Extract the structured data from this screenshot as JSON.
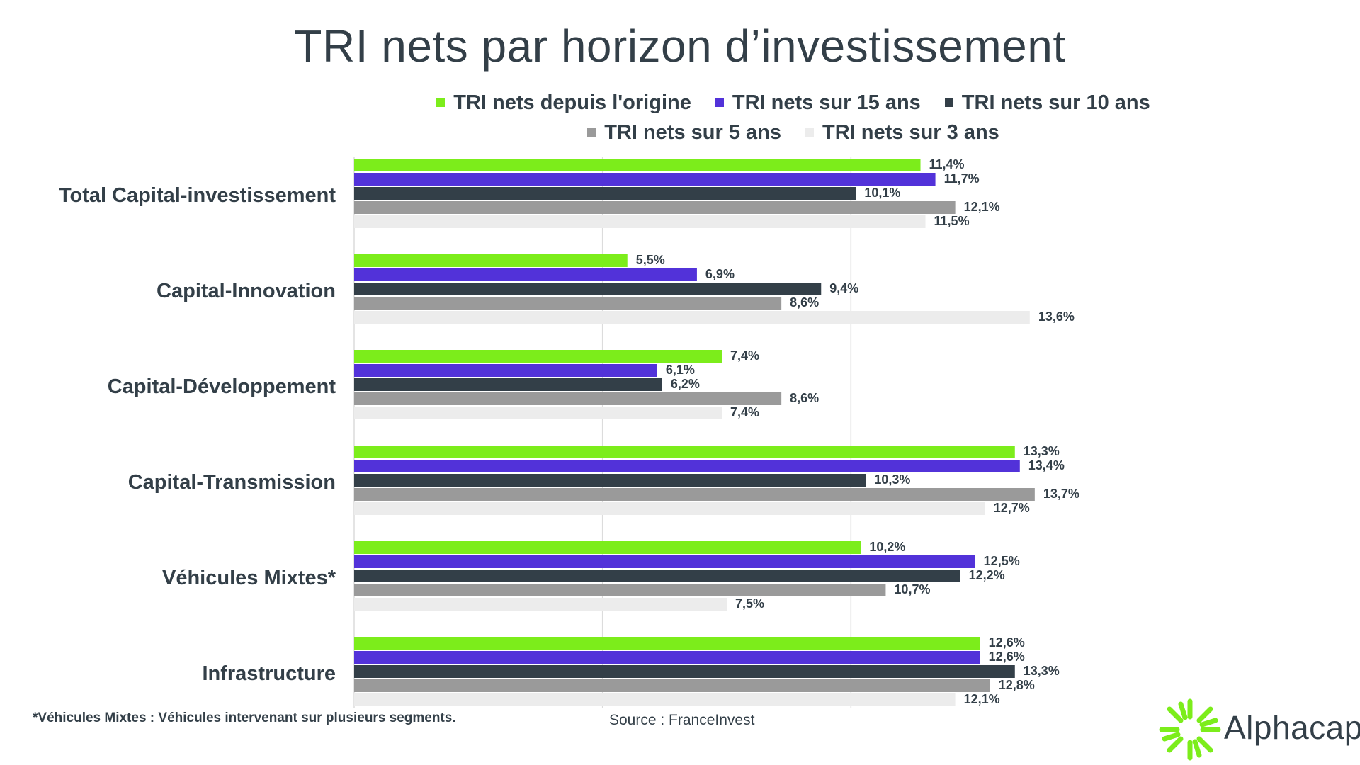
{
  "colors": {
    "origine": "#7ced1b",
    "y15": "#5232d9",
    "y10": "#333f48",
    "y5": "#9a9a9a",
    "y3": "#ececec",
    "text": "#333f48",
    "grid": "#dcdcdc"
  },
  "chart_data": {
    "type": "bar",
    "orientation": "horizontal",
    "title": "TRI nets par horizon d’investissement",
    "categories": [
      "Total Capital-investissement",
      "Capital-Innovation",
      "Capital-Développement",
      "Capital-Transmission",
      "Véhicules Mixtes*",
      "Infrastructure"
    ],
    "series": [
      {
        "name": "TRI nets depuis l'origine",
        "color": "#7ced1b",
        "values": [
          11.4,
          5.5,
          7.4,
          13.3,
          10.2,
          12.6
        ],
        "labels": [
          "11,4%",
          "5,5%",
          "7,4%",
          "13,3%",
          "10,2%",
          "12,6%"
        ]
      },
      {
        "name": "TRI nets sur 15 ans",
        "color": "#5232d9",
        "values": [
          11.7,
          6.9,
          6.1,
          13.4,
          12.5,
          12.6
        ],
        "labels": [
          "11,7%",
          "6,9%",
          "6,1%",
          "13,4%",
          "12,5%",
          "12,6%"
        ]
      },
      {
        "name": "TRI nets sur 10 ans",
        "color": "#333f48",
        "values": [
          10.1,
          9.4,
          6.2,
          10.3,
          12.2,
          13.3
        ],
        "labels": [
          "10,1%",
          "9,4%",
          "6,2%",
          "10,3%",
          "12,2%",
          "13,3%"
        ]
      },
      {
        "name": "TRI nets sur 5 ans",
        "color": "#9a9a9a",
        "values": [
          12.1,
          8.6,
          8.6,
          13.7,
          10.7,
          12.8
        ],
        "labels": [
          "12,1%",
          "8,6%",
          "8,6%",
          "13,7%",
          "10,7%",
          "12,8%"
        ]
      },
      {
        "name": "TRI nets sur 3 ans",
        "color": "#ececec",
        "values": [
          11.5,
          13.6,
          7.4,
          12.7,
          7.5,
          12.1
        ],
        "labels": [
          "11,5%",
          "13,6%",
          "7,4%",
          "12,7%",
          "7,5%",
          "12,1%"
        ]
      }
    ],
    "xlim": [
      0,
      15
    ],
    "grid": true,
    "legend_position": "top"
  },
  "footnote": "*Véhicules Mixtes : Véhicules intervenant sur plusieurs segments.",
  "source": "Source : FranceInvest",
  "logo": {
    "text": "Alphacap"
  }
}
